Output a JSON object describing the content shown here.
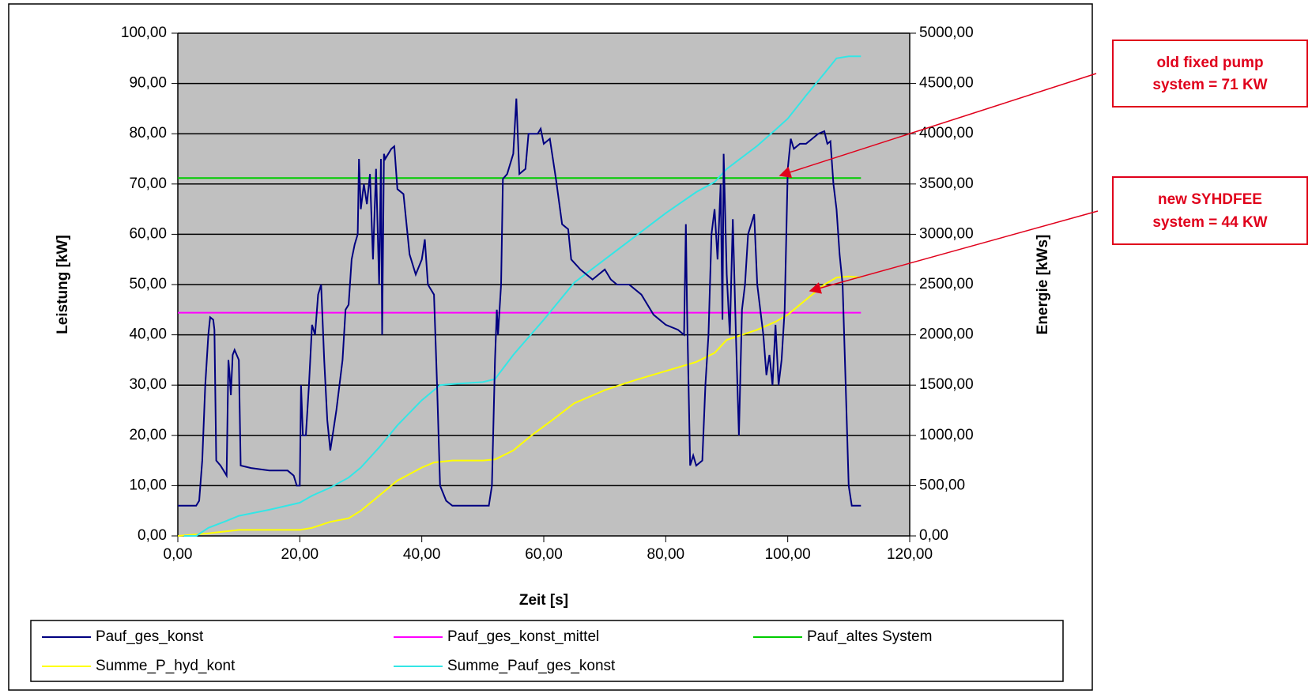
{
  "chart_data": {
    "type": "line",
    "xlabel": "Zeit [s]",
    "ylabel": "Leistung [kW]",
    "y2label": "Energie [kWs]",
    "xlim": [
      0,
      120
    ],
    "ylim": [
      0,
      100
    ],
    "y2lim": [
      0,
      5000
    ],
    "grid": true,
    "legend": "bottom",
    "xticks": [
      {
        "value": 0,
        "label": "0,00"
      },
      {
        "value": 20,
        "label": "20,00"
      },
      {
        "value": 40,
        "label": "40,00"
      },
      {
        "value": 60,
        "label": "60,00"
      },
      {
        "value": 80,
        "label": "80,00"
      },
      {
        "value": 100,
        "label": "100,00"
      },
      {
        "value": 120,
        "label": "120,00"
      }
    ],
    "yticks": [
      {
        "value": 0,
        "label": "0,00"
      },
      {
        "value": 10,
        "label": "10,00"
      },
      {
        "value": 20,
        "label": "20,00"
      },
      {
        "value": 30,
        "label": "30,00"
      },
      {
        "value": 40,
        "label": "40,00"
      },
      {
        "value": 50,
        "label": "50,00"
      },
      {
        "value": 60,
        "label": "60,00"
      },
      {
        "value": 70,
        "label": "70,00"
      },
      {
        "value": 80,
        "label": "80,00"
      },
      {
        "value": 90,
        "label": "90,00"
      },
      {
        "value": 100,
        "label": "100,00"
      }
    ],
    "y2ticks": [
      {
        "value": 0,
        "label": "0,00"
      },
      {
        "value": 500,
        "label": "500,00"
      },
      {
        "value": 1000,
        "label": "1000,00"
      },
      {
        "value": 1500,
        "label": "1500,00"
      },
      {
        "value": 2000,
        "label": "2000,00"
      },
      {
        "value": 2500,
        "label": "2500,00"
      },
      {
        "value": 3000,
        "label": "3000,00"
      },
      {
        "value": 3500,
        "label": "3500,00"
      },
      {
        "value": 4000,
        "label": "4000,00"
      },
      {
        "value": 4500,
        "label": "4500,00"
      },
      {
        "value": 5000,
        "label": "5000,00"
      }
    ],
    "annotations": [
      {
        "lines": [
          "old fixed pump",
          "system = 71 KW"
        ]
      },
      {
        "lines": [
          "new SYHDFEE",
          "system = 44 KW"
        ]
      }
    ],
    "series": [
      {
        "name": "Pauf_ges_konst",
        "color": "#000080",
        "x": [
          0,
          3,
          3.5,
          4,
          4.5,
          5,
          5.3,
          5.8,
          6,
          6.3,
          7,
          7.5,
          8,
          8.3,
          8.5,
          8.7,
          9,
          9.3,
          10,
          10.3,
          12,
          15,
          18,
          19,
          19.5,
          20,
          20.2,
          20.5,
          21,
          21.5,
          22,
          22.5,
          23,
          23.5,
          24,
          24.5,
          25,
          25.5,
          26,
          26.5,
          27,
          27.5,
          28,
          28.5,
          29,
          29.5,
          29.7,
          30,
          30.5,
          31,
          31.5,
          32,
          32.5,
          33,
          33.3,
          33.5,
          33.8,
          34,
          35,
          35.5,
          36,
          37,
          38,
          39,
          40,
          40.5,
          41,
          42,
          42.5,
          43,
          44,
          45,
          48,
          51,
          51.5,
          52,
          52.3,
          52.5,
          53,
          53.3,
          54,
          55,
          55.5,
          56,
          57,
          57.5,
          59,
          59.5,
          60,
          61,
          62,
          63,
          64,
          64.5,
          66,
          68,
          70,
          71,
          72,
          74,
          76,
          78,
          80,
          82,
          83,
          83.3,
          83.5,
          84,
          84.5,
          85,
          86,
          86.5,
          87,
          87.5,
          88,
          88.5,
          89,
          89.3,
          89.5,
          90,
          90.5,
          91,
          91.5,
          92,
          92.5,
          93,
          93.5,
          94,
          94.5,
          95,
          96,
          96.5,
          97,
          97.5,
          98,
          98.5,
          99,
          99.5,
          100,
          100.5,
          101,
          102,
          103,
          104,
          105,
          106,
          106.5,
          107,
          107.5,
          108,
          108.5,
          109,
          109.5,
          110,
          110.5,
          112
        ],
        "values": [
          6,
          6,
          7,
          15,
          30,
          40,
          43.5,
          43,
          41,
          15,
          14,
          13,
          12,
          35,
          32,
          28,
          36,
          37,
          35,
          14,
          13.5,
          13,
          13,
          12,
          10,
          10,
          30,
          20,
          20,
          30,
          42,
          40,
          48,
          50,
          35,
          23,
          17,
          21,
          25,
          30,
          35,
          45,
          46,
          55,
          58,
          60,
          75,
          65,
          70,
          66,
          72,
          55,
          73,
          50,
          75,
          40,
          76,
          75,
          77,
          77.5,
          69,
          68,
          56,
          52,
          55,
          59,
          50,
          48,
          30,
          10,
          7,
          6,
          6,
          6,
          10,
          35,
          45,
          40,
          50,
          71,
          72,
          76,
          87,
          72,
          73,
          80,
          80,
          81,
          78,
          79,
          71,
          62,
          61,
          55,
          53,
          51,
          53,
          51,
          50,
          50,
          48,
          44,
          42,
          41,
          40,
          62,
          45,
          14,
          16,
          14,
          15,
          30,
          40,
          60,
          65,
          55,
          70,
          43,
          76,
          52,
          40,
          63,
          40,
          20,
          45,
          50,
          60,
          62,
          64,
          50,
          40,
          32,
          36,
          30,
          42,
          30,
          35,
          45,
          73,
          79,
          77,
          78,
          78,
          79,
          80,
          80.5,
          78,
          78.5,
          70,
          65,
          56,
          50,
          30,
          10,
          6,
          6
        ]
      },
      {
        "name": "Pauf_ges_konst_mittel",
        "color": "#ff00ff",
        "x": [
          0,
          112
        ],
        "values": [
          44.4,
          44.4
        ]
      },
      {
        "name": "Pauf_altes System",
        "color": "#00cc00",
        "x": [
          0,
          112
        ],
        "values": [
          71.2,
          71.2
        ]
      },
      {
        "name": "Summe_P_hyd_kont",
        "color": "#ffff00",
        "axis": "y2",
        "x": [
          0,
          5,
          10,
          15,
          20,
          22,
          25,
          28,
          30,
          33,
          36,
          40,
          42,
          45,
          50,
          52,
          55,
          58,
          62,
          65,
          70,
          75,
          80,
          85,
          88,
          90,
          95,
          98,
          100,
          103,
          106,
          108,
          110,
          112
        ],
        "values": [
          0,
          25,
          60,
          60,
          60,
          80,
          140,
          175,
          250,
          400,
          550,
          680,
          730,
          750,
          750,
          760,
          850,
          1000,
          1180,
          1320,
          1450,
          1550,
          1640,
          1730,
          1820,
          1950,
          2050,
          2130,
          2200,
          2350,
          2500,
          2570,
          2580,
          2570
        ]
      },
      {
        "name": "Summe_Pauf_ges_konst",
        "color": "#33e6e6",
        "axis": "y2",
        "x": [
          1,
          3,
          5,
          8,
          10,
          15,
          20,
          22,
          25,
          28,
          30,
          33,
          36,
          40,
          43,
          45,
          50,
          52,
          55,
          60,
          65,
          70,
          75,
          80,
          85,
          88,
          90,
          95,
          98,
          100,
          103,
          106,
          108,
          110,
          112
        ],
        "values": [
          0,
          0,
          80,
          150,
          200,
          260,
          330,
          400,
          480,
          580,
          680,
          880,
          1100,
          1350,
          1500,
          1510,
          1530,
          1560,
          1800,
          2150,
          2520,
          2750,
          2980,
          3210,
          3420,
          3520,
          3650,
          3880,
          4040,
          4150,
          4380,
          4600,
          4750,
          4770,
          4770
        ]
      }
    ]
  }
}
